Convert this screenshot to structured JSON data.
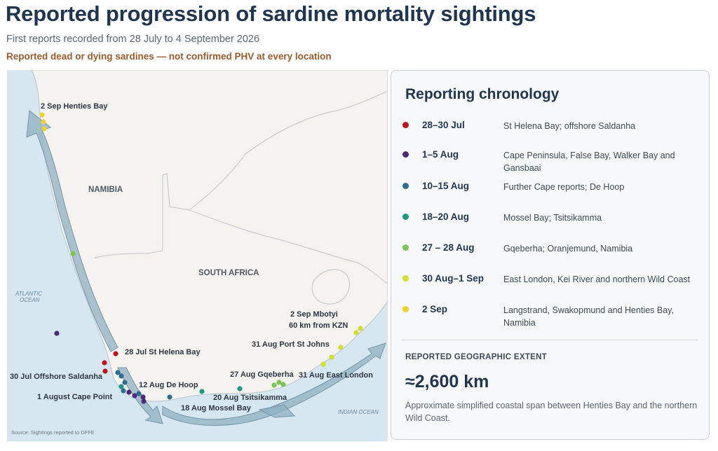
{
  "header": {
    "title": "Reported progression of sardine mortality sightings",
    "subtitle": "First reports recorded from 28 July to 4 September 2026",
    "caveat": "Reported dead or dying sardines — not confirmed PHV at every location"
  },
  "map": {
    "regions": {
      "namibia": "NAMIBIA",
      "south_africa": "SOUTH AFRICA"
    },
    "oceans": {
      "atlantic_line1": "ATLANTIC",
      "atlantic_line2": "OCEAN",
      "indian": "INDIAN OCEAN"
    },
    "source": "Source: Sightings reported to DFFE",
    "labels": {
      "henties": "2 Sep  Henties Bay",
      "st_helena": "28 Jul  St Helena Bay",
      "saldanha": "30 Jul  Offshore Saldanha",
      "cape_point": "1 August Cape Point",
      "de_hoop": "12 Aug  De Hoop",
      "mossel_bay": "18 Aug  Mossel Bay",
      "tsitsikamma": "20 Aug  Tsitsikamma",
      "gqeberha": "27 Aug  Gqeberha",
      "east_london": "31 Aug  East London",
      "port_st_johns": "31 Aug  Port St Johns",
      "mbotyi_line1": "2 Sep  Mbotyi",
      "mbotyi_line2": "60 km from KZN"
    }
  },
  "colors": {
    "jul": "#c0141c",
    "aug1": "#4b2a7c",
    "aug10": "#2c6e8f",
    "aug18": "#1f9a82",
    "aug27": "#79c653",
    "aug30": "#d3df2d",
    "sep2": "#f2d12a"
  },
  "chronology": {
    "title": "Reporting chronology",
    "items": [
      {
        "date": "28–30 Jul",
        "desc": "St Helena Bay; offshore Saldanha",
        "color": "#c0141c"
      },
      {
        "date": "1–5 Aug",
        "desc": "Cape Peninsula, False Bay, Walker Bay and Gansbaai",
        "color": "#4b2a7c"
      },
      {
        "date": "10–15 Aug",
        "desc": "Further Cape reports; De Hoop",
        "color": "#2c6e8f"
      },
      {
        "date": "18–20 Aug",
        "desc": "Mossel Bay; Tsitsikamma",
        "color": "#1f9a82"
      },
      {
        "date": "27 – 28  Aug",
        "desc": "Gqeberha; Oranjemund, Namibia",
        "color": "#79c653"
      },
      {
        "date": "30 Aug–1 Sep",
        "desc": "East London, Kei River and northern Wild Coast",
        "color": "#d3df2d"
      },
      {
        "date": "2 Sep",
        "desc": "Langstrand, Swakopmund and Henties Bay, Namibia",
        "color": "#f2d12a"
      }
    ]
  },
  "extent": {
    "label": "REPORTED GEOGRAPHIC EXTENT",
    "value": "≈2,600 km",
    "note": "Approximate simplified coastal span between Henties Bay and the northern Wild Coast."
  }
}
